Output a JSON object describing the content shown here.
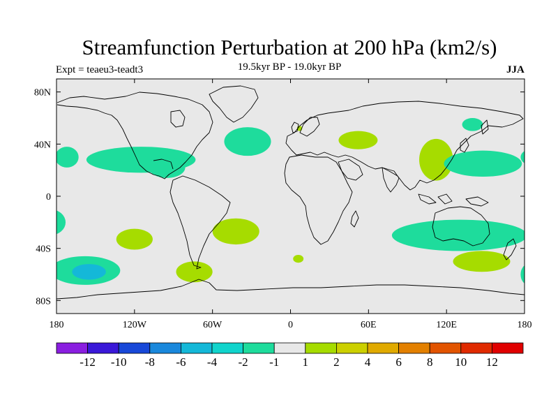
{
  "chart_data": {
    "type": "heatmap",
    "title": "Streamfunction Perturbation at 200 hPa (km2/s)",
    "left_subtitle": "Expt = teaeu3-teadt3",
    "center_subtitle": "19.5kyr BP - 19.0kyr BP",
    "right_subtitle": "JJA",
    "projection": "cylindrical-equidistant",
    "x_range": [
      -180,
      180
    ],
    "y_range": [
      -90,
      90
    ],
    "x_ticks": [
      {
        "value": -180,
        "label": "180"
      },
      {
        "value": -120,
        "label": "120W"
      },
      {
        "value": -60,
        "label": "60W"
      },
      {
        "value": 0,
        "label": "0"
      },
      {
        "value": 60,
        "label": "60E"
      },
      {
        "value": 120,
        "label": "120E"
      },
      {
        "value": 180,
        "label": "180"
      }
    ],
    "y_ticks": [
      {
        "value": 80,
        "label": "80N"
      },
      {
        "value": 40,
        "label": "40N"
      },
      {
        "value": 0,
        "label": "0"
      },
      {
        "value": -40,
        "label": "40S"
      },
      {
        "value": -80,
        "label": "80S"
      }
    ],
    "levels": [
      "-12",
      "-10",
      "-8",
      "-6",
      "-4",
      "-2",
      "-1",
      "1",
      "2",
      "4",
      "6",
      "8",
      "10",
      "12"
    ],
    "colors": [
      "#8a1ee0",
      "#3a18d8",
      "#1848d8",
      "#1a88dc",
      "#14b8d8",
      "#10d4cc",
      "#1edc9c",
      "#e8e8e8",
      "#a6dc00",
      "#ccd000",
      "#e0aa00",
      "#e38000",
      "#e25400",
      "#e02a00",
      "#e00000"
    ],
    "background_color": "#e8e8e8",
    "regions": [
      {
        "color": "#1edc9c",
        "lon": -172,
        "lat": 30,
        "rlon": 9,
        "rlat": 8
      },
      {
        "color": "#1edc9c",
        "lon": -115,
        "lat": 28,
        "rlon": 42,
        "rlat": 10
      },
      {
        "color": "#1edc9c",
        "lon": -95,
        "lat": 22,
        "rlon": 14,
        "rlat": 8
      },
      {
        "color": "#1edc9c",
        "lon": -33,
        "lat": 42,
        "rlon": 18,
        "rlat": 11
      },
      {
        "color": "#a6dc00",
        "lon": 7,
        "lat": 52,
        "rlon": 2,
        "rlat": 2
      },
      {
        "color": "#a6dc00",
        "lon": 52,
        "lat": 43,
        "rlon": 15,
        "rlat": 7
      },
      {
        "color": "#1edc9c",
        "lon": 140,
        "lat": 55,
        "rlon": 8,
        "rlat": 5
      },
      {
        "color": "#a6dc00",
        "lon": 112,
        "lat": 28,
        "rlon": 13,
        "rlat": 16
      },
      {
        "color": "#1edc9c",
        "lon": 148,
        "lat": 25,
        "rlon": 30,
        "rlat": 10
      },
      {
        "color": "#1edc9c",
        "lon": 185,
        "lat": 30,
        "rlon": 8,
        "rlat": 6
      },
      {
        "color": "#1edc9c",
        "lon": -185,
        "lat": -20,
        "rlon": 12,
        "rlat": 10
      },
      {
        "color": "#a6dc00",
        "lon": -120,
        "lat": -33,
        "rlon": 14,
        "rlat": 8
      },
      {
        "color": "#a6dc00",
        "lon": -42,
        "lat": -27,
        "rlon": 18,
        "rlat": 10
      },
      {
        "color": "#a6dc00",
        "lon": 6,
        "lat": -48,
        "rlon": 4,
        "rlat": 3
      },
      {
        "color": "#1edc9c",
        "lon": 130,
        "lat": -30,
        "rlon": 52,
        "rlat": 12
      },
      {
        "color": "#1edc9c",
        "lon": 118,
        "lat": -32,
        "rlon": 6,
        "rlat": 4
      },
      {
        "color": "#a6dc00",
        "lon": 147,
        "lat": -50,
        "rlon": 22,
        "rlat": 8
      },
      {
        "color": "#1edc9c",
        "lon": 183,
        "lat": -60,
        "rlon": 6,
        "rlat": 8
      },
      {
        "color": "#1edc9c",
        "lon": -158,
        "lat": -57,
        "rlon": 27,
        "rlat": 11
      },
      {
        "color": "#14b8d8",
        "lon": -155,
        "lat": -58,
        "rlon": 13,
        "rlat": 6
      },
      {
        "color": "#a6dc00",
        "lon": -74,
        "lat": -58,
        "rlon": 14,
        "rlat": 8
      }
    ]
  }
}
